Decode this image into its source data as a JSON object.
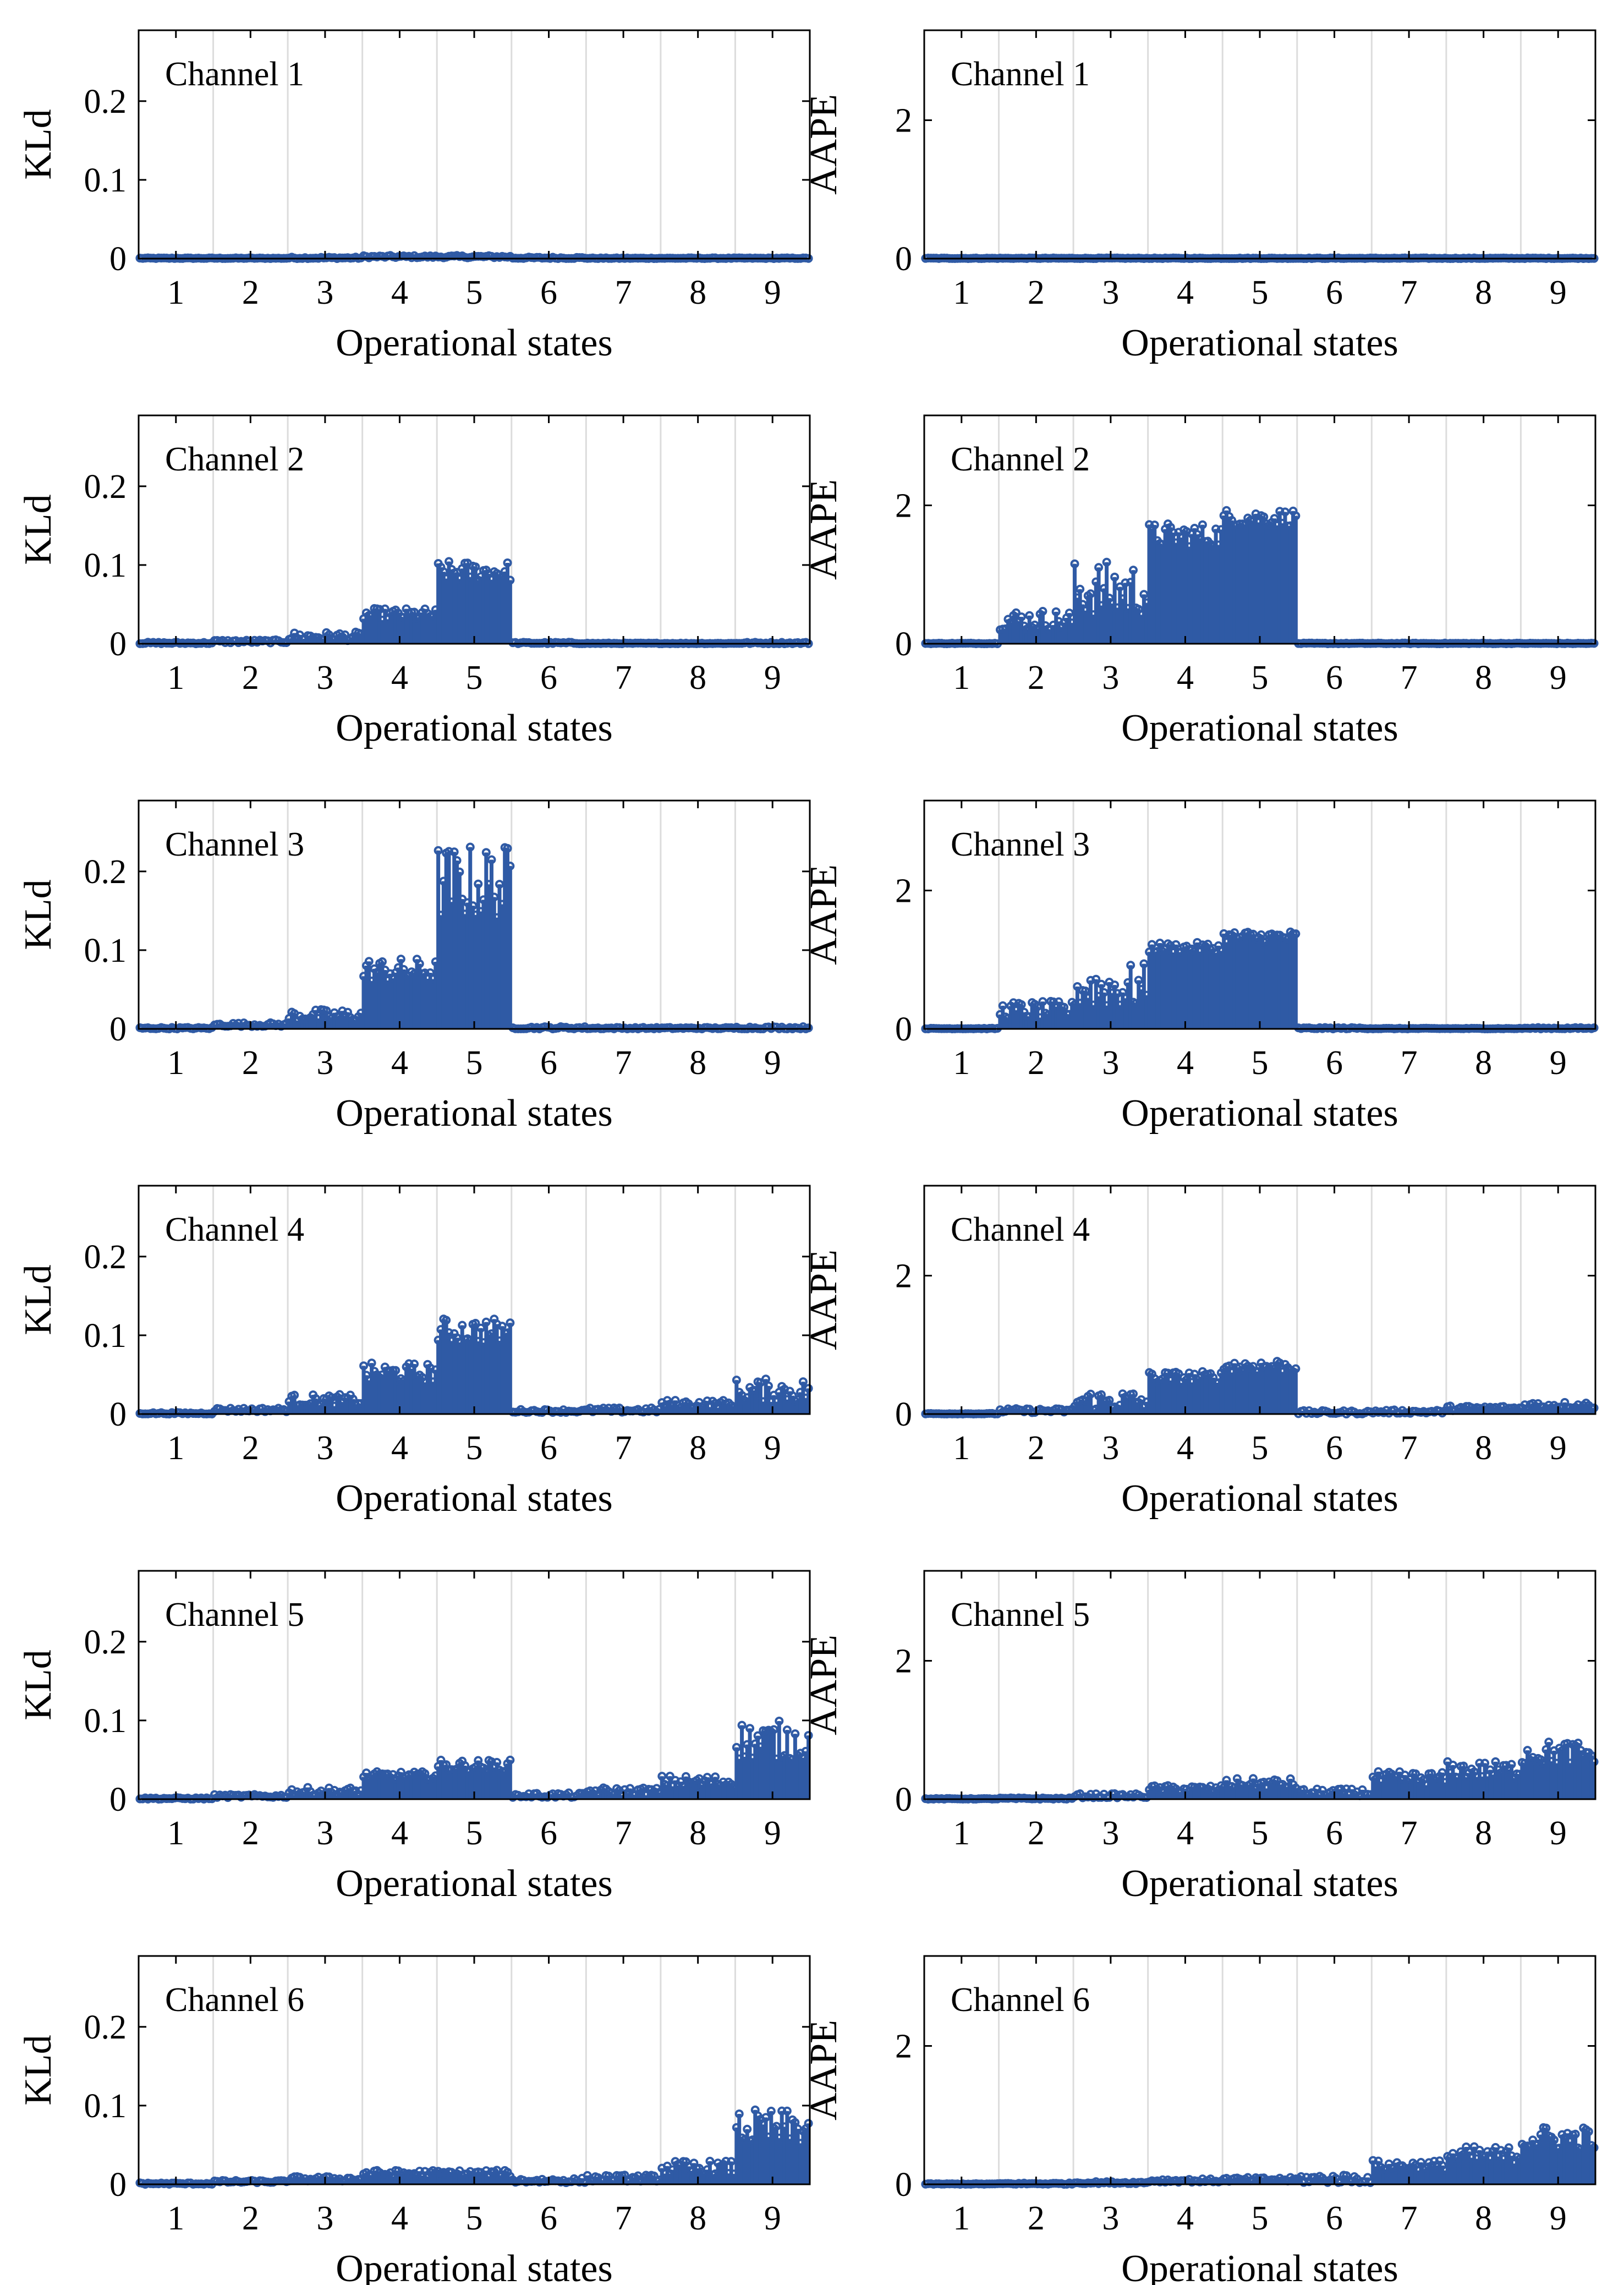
{
  "figure": {
    "x_tick_labels": [
      "1",
      "2",
      "3",
      "4",
      "5",
      "6",
      "7",
      "8",
      "9"
    ],
    "series_color": "#2f5aa5"
  },
  "chart_data": [
    {
      "type": "stem",
      "metric": "KLd",
      "title": "Channel 1",
      "xlabel": "Operational states",
      "ylabel": "KLd",
      "ylim": [
        0,
        0.29
      ],
      "yticks": [
        0,
        0.1,
        0.2
      ],
      "ytick_labels": [
        "0",
        "0.1",
        "0.2"
      ],
      "xlim": [
        0.5,
        9.5
      ],
      "grid": "vertical at state boundaries",
      "state_ranges": [
        [
          0,
          0.001
        ],
        [
          0,
          0.001
        ],
        [
          0,
          0.002
        ],
        [
          0.001,
          0.004
        ],
        [
          0.001,
          0.004
        ],
        [
          0,
          0.002
        ],
        [
          0,
          0.001
        ],
        [
          0,
          0.001
        ],
        [
          0,
          0.001
        ]
      ]
    },
    {
      "type": "stem",
      "metric": "AAPE",
      "title": "Channel 1",
      "xlabel": "Operational states",
      "ylabel": "AAPE",
      "ylim": [
        0,
        3.3
      ],
      "yticks": [
        0,
        2
      ],
      "ytick_labels": [
        "0",
        "2"
      ],
      "xlim": [
        0.5,
        9.5
      ],
      "grid": "vertical at state boundaries",
      "state_ranges": [
        [
          0,
          0.01
        ],
        [
          0,
          0.01
        ],
        [
          0,
          0.01
        ],
        [
          0,
          0.01
        ],
        [
          0,
          0.01
        ],
        [
          0,
          0.01
        ],
        [
          0,
          0.01
        ],
        [
          0,
          0.01
        ],
        [
          0,
          0.01
        ]
      ]
    },
    {
      "type": "stem",
      "metric": "KLd",
      "title": "Channel 2",
      "xlabel": "Operational states",
      "ylabel": "KLd",
      "ylim": [
        0,
        0.29
      ],
      "yticks": [
        0,
        0.1,
        0.2
      ],
      "ytick_labels": [
        "0",
        "0.1",
        "0.2"
      ],
      "xlim": [
        0.5,
        9.5
      ],
      "grid": "vertical at state boundaries",
      "state_ranges": [
        [
          0,
          0.002
        ],
        [
          0.001,
          0.005
        ],
        [
          0.004,
          0.015
        ],
        [
          0.03,
          0.045
        ],
        [
          0.08,
          0.105
        ],
        [
          0,
          0.002
        ],
        [
          0,
          0.001
        ],
        [
          0,
          0.001
        ],
        [
          0,
          0.002
        ]
      ]
    },
    {
      "type": "stem",
      "metric": "AAPE",
      "title": "Channel 2",
      "xlabel": "Operational states",
      "ylabel": "AAPE",
      "ylim": [
        0,
        3.3
      ],
      "yticks": [
        0,
        2
      ],
      "ytick_labels": [
        "0",
        "2"
      ],
      "xlim": [
        0.5,
        9.5
      ],
      "grid": "vertical at state boundaries",
      "state_ranges": [
        [
          0,
          0.01
        ],
        [
          0.2,
          0.5
        ],
        [
          0.4,
          1.2
        ],
        [
          1.4,
          1.75
        ],
        [
          1.7,
          1.95
        ],
        [
          0,
          0.01
        ],
        [
          0,
          0.01
        ],
        [
          0,
          0.01
        ],
        [
          0,
          0.01
        ]
      ]
    },
    {
      "type": "stem",
      "metric": "KLd",
      "title": "Channel 3",
      "xlabel": "Operational states",
      "ylabel": "KLd",
      "ylim": [
        0,
        0.29
      ],
      "yticks": [
        0,
        0.1,
        0.2
      ],
      "ytick_labels": [
        "0",
        "0.1",
        "0.2"
      ],
      "xlim": [
        0.5,
        9.5
      ],
      "grid": "vertical at state boundaries",
      "state_ranges": [
        [
          0,
          0.002
        ],
        [
          0.003,
          0.008
        ],
        [
          0.01,
          0.025
        ],
        [
          0.06,
          0.09
        ],
        [
          0.14,
          0.235
        ],
        [
          0,
          0.003
        ],
        [
          0,
          0.002
        ],
        [
          0,
          0.002
        ],
        [
          0,
          0.003
        ]
      ]
    },
    {
      "type": "stem",
      "metric": "AAPE",
      "title": "Channel 3",
      "xlabel": "Operational states",
      "ylabel": "AAPE",
      "ylim": [
        0,
        3.3
      ],
      "yticks": [
        0,
        2
      ],
      "ytick_labels": [
        "0",
        "2"
      ],
      "xlim": [
        0.5,
        9.5
      ],
      "grid": "vertical at state boundaries",
      "state_ranges": [
        [
          0,
          0.01
        ],
        [
          0.15,
          0.4
        ],
        [
          0.3,
          0.95
        ],
        [
          1.1,
          1.25
        ],
        [
          1.25,
          1.42
        ],
        [
          0,
          0.02
        ],
        [
          0,
          0.01
        ],
        [
          0,
          0.01
        ],
        [
          0,
          0.02
        ]
      ]
    },
    {
      "type": "stem",
      "metric": "KLd",
      "title": "Channel 4",
      "xlabel": "Operational states",
      "ylabel": "KLd",
      "ylim": [
        0,
        0.29
      ],
      "yticks": [
        0,
        0.1,
        0.2
      ],
      "ytick_labels": [
        "0",
        "0.1",
        "0.2"
      ],
      "xlim": [
        0.5,
        9.5
      ],
      "grid": "vertical at state boundaries",
      "state_ranges": [
        [
          0,
          0.002
        ],
        [
          0.003,
          0.008
        ],
        [
          0.01,
          0.025
        ],
        [
          0.04,
          0.065
        ],
        [
          0.09,
          0.122
        ],
        [
          0.002,
          0.006
        ],
        [
          0.002,
          0.008
        ],
        [
          0.008,
          0.018
        ],
        [
          0.015,
          0.045
        ]
      ]
    },
    {
      "type": "stem",
      "metric": "AAPE",
      "title": "Channel 4",
      "xlabel": "Operational states",
      "ylabel": "AAPE",
      "ylim": [
        0,
        3.3
      ],
      "yticks": [
        0,
        2
      ],
      "ytick_labels": [
        "0",
        "2"
      ],
      "xlim": [
        0.5,
        9.5
      ],
      "grid": "vertical at state boundaries",
      "state_ranges": [
        [
          0,
          0.01
        ],
        [
          0.02,
          0.08
        ],
        [
          0.05,
          0.35
        ],
        [
          0.45,
          0.62
        ],
        [
          0.6,
          0.8
        ],
        [
          0,
          0.05
        ],
        [
          0.01,
          0.06
        ],
        [
          0.05,
          0.12
        ],
        [
          0.08,
          0.18
        ]
      ]
    },
    {
      "type": "stem",
      "metric": "KLd",
      "title": "Channel 5",
      "xlabel": "Operational states",
      "ylabel": "KLd",
      "ylim": [
        0,
        0.29
      ],
      "yticks": [
        0,
        0.1,
        0.2
      ],
      "ytick_labels": [
        "0",
        "0.1",
        "0.2"
      ],
      "xlim": [
        0.5,
        9.5
      ],
      "grid": "vertical at state boundaries",
      "state_ranges": [
        [
          0,
          0.002
        ],
        [
          0.002,
          0.006
        ],
        [
          0.005,
          0.015
        ],
        [
          0.025,
          0.035
        ],
        [
          0.035,
          0.05
        ],
        [
          0.002,
          0.008
        ],
        [
          0.005,
          0.015
        ],
        [
          0.015,
          0.03
        ],
        [
          0.05,
          0.1
        ]
      ]
    },
    {
      "type": "stem",
      "metric": "AAPE",
      "title": "Channel 5",
      "xlabel": "Operational states",
      "ylabel": "AAPE",
      "ylim": [
        0,
        3.3
      ],
      "yticks": [
        0,
        2
      ],
      "ytick_labels": [
        "0",
        "2"
      ],
      "xlim": [
        0.5,
        9.5
      ],
      "grid": "vertical at state boundaries",
      "state_ranges": [
        [
          0,
          0.01
        ],
        [
          0,
          0.02
        ],
        [
          0.02,
          0.08
        ],
        [
          0.1,
          0.2
        ],
        [
          0.15,
          0.3
        ],
        [
          0.05,
          0.15
        ],
        [
          0.2,
          0.4
        ],
        [
          0.3,
          0.55
        ],
        [
          0.5,
          0.85
        ]
      ]
    },
    {
      "type": "stem",
      "metric": "KLd",
      "title": "Channel 6",
      "xlabel": "Operational states",
      "ylabel": "KLd",
      "ylim": [
        0,
        0.29
      ],
      "yticks": [
        0,
        0.1,
        0.2
      ],
      "ytick_labels": [
        "0",
        "0.1",
        "0.2"
      ],
      "xlim": [
        0.5,
        9.5
      ],
      "grid": "vertical at state boundaries",
      "state_ranges": [
        [
          0,
          0.002
        ],
        [
          0.002,
          0.005
        ],
        [
          0.004,
          0.01
        ],
        [
          0.01,
          0.018
        ],
        [
          0.01,
          0.018
        ],
        [
          0.002,
          0.008
        ],
        [
          0.004,
          0.012
        ],
        [
          0.012,
          0.03
        ],
        [
          0.05,
          0.095
        ]
      ]
    },
    {
      "type": "stem",
      "metric": "AAPE",
      "title": "Channel 6",
      "xlabel": "Operational states",
      "ylabel": "AAPE",
      "ylim": [
        0,
        3.3
      ],
      "yticks": [
        0,
        2
      ],
      "ytick_labels": [
        "0",
        "2"
      ],
      "xlim": [
        0.5,
        9.5
      ],
      "grid": "vertical at state boundaries",
      "state_ranges": [
        [
          0,
          0.01
        ],
        [
          0,
          0.02
        ],
        [
          0.01,
          0.04
        ],
        [
          0.03,
          0.08
        ],
        [
          0.04,
          0.1
        ],
        [
          0.02,
          0.15
        ],
        [
          0.2,
          0.35
        ],
        [
          0.3,
          0.55
        ],
        [
          0.5,
          0.85
        ]
      ]
    }
  ]
}
